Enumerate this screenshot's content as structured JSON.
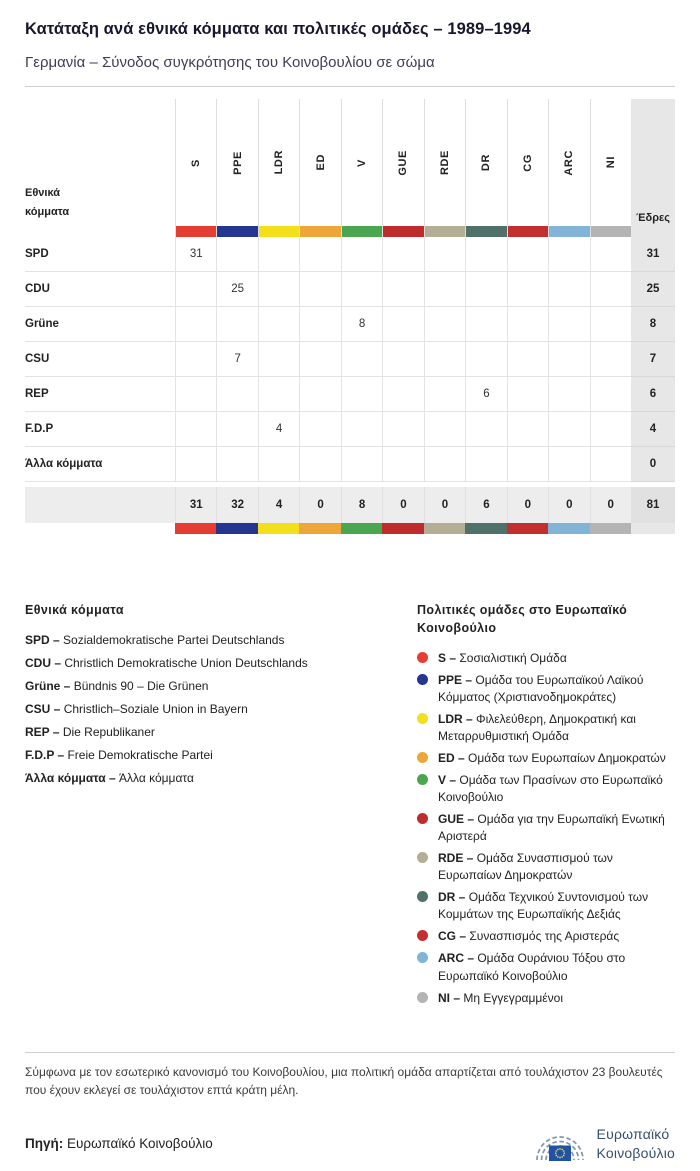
{
  "header": {
    "title": "Κατάταξη ανά εθνικά κόμματα και πολιτικές ομάδες – 1989–1994",
    "subtitle": "Γερμανία – Σύνοδος συγκρότησης του Κοινοβουλίου σε σώμα"
  },
  "table": {
    "row_header_label": "Εθνικά κόμματα",
    "seats_label": "Έδρες",
    "groups": [
      {
        "code": "S",
        "color": "#e63d33"
      },
      {
        "code": "PPE",
        "color": "#24368f"
      },
      {
        "code": "LDR",
        "color": "#f3df1a"
      },
      {
        "code": "ED",
        "color": "#eea63a"
      },
      {
        "code": "V",
        "color": "#4ba650"
      },
      {
        "code": "GUE",
        "color": "#bf2c2c"
      },
      {
        "code": "RDE",
        "color": "#b5ae97"
      },
      {
        "code": "DR",
        "color": "#50706a"
      },
      {
        "code": "CG",
        "color": "#c32f2f"
      },
      {
        "code": "ARC",
        "color": "#82b4d8"
      },
      {
        "code": "NI",
        "color": "#b4b4b4"
      }
    ],
    "rows": [
      {
        "party": "SPD",
        "values": [
          "31",
          "",
          "",
          "",
          "",
          "",
          "",
          "",
          "",
          "",
          ""
        ],
        "seats": "31"
      },
      {
        "party": "CDU",
        "values": [
          "",
          "25",
          "",
          "",
          "",
          "",
          "",
          "",
          "",
          "",
          ""
        ],
        "seats": "25"
      },
      {
        "party": "Grüne",
        "values": [
          "",
          "",
          "",
          "",
          "8",
          "",
          "",
          "",
          "",
          "",
          ""
        ],
        "seats": "8"
      },
      {
        "party": "CSU",
        "values": [
          "",
          "7",
          "",
          "",
          "",
          "",
          "",
          "",
          "",
          "",
          ""
        ],
        "seats": "7"
      },
      {
        "party": "REP",
        "values": [
          "",
          "",
          "",
          "",
          "",
          "",
          "",
          "6",
          "",
          "",
          ""
        ],
        "seats": "6"
      },
      {
        "party": "F.D.P",
        "values": [
          "",
          "",
          "4",
          "",
          "",
          "",
          "",
          "",
          "",
          "",
          ""
        ],
        "seats": "4"
      },
      {
        "party": "Άλλα κόμματα",
        "values": [
          "",
          "",
          "",
          "",
          "",
          "",
          "",
          "",
          "",
          "",
          ""
        ],
        "seats": "0"
      }
    ],
    "totals": {
      "values": [
        "31",
        "32",
        "4",
        "0",
        "8",
        "0",
        "0",
        "6",
        "0",
        "0",
        "0"
      ],
      "seats": "81"
    }
  },
  "legend_parties": {
    "title": "Εθνικά κόμματα",
    "items": [
      {
        "code": "SPD –",
        "name": "Sozialdemokratische Partei Deutschlands"
      },
      {
        "code": "CDU –",
        "name": "Christlich Demokratische Union Deutschlands"
      },
      {
        "code": "Grüne –",
        "name": "Bündnis 90 – Die Grünen"
      },
      {
        "code": "CSU –",
        "name": "Christlich–Soziale Union in Bayern"
      },
      {
        "code": "REP –",
        "name": "Die Republikaner"
      },
      {
        "code": "F.D.P –",
        "name": "Freie Demokratische Partei"
      },
      {
        "code": "Άλλα κόμματα –",
        "name": "Άλλα κόμματα"
      }
    ]
  },
  "legend_groups": {
    "title": "Πολιτικές ομάδες στο Ευρωπαϊκό Κοινοβούλιο",
    "items": [
      {
        "code": "S –",
        "name": "Σοσιαλιστική Ομάδα",
        "color": "#e63d33"
      },
      {
        "code": "PPE –",
        "name": "Ομάδα του Ευρωπαϊκού Λαϊκού Κόμματος (Χριστιανοδημοκράτες)",
        "color": "#24368f"
      },
      {
        "code": "LDR –",
        "name": "Φιλελεύθερη, Δημοκρατική και Μεταρρυθμιστική Ομάδα",
        "color": "#f3df1a"
      },
      {
        "code": "ED –",
        "name": "Ομάδα των Ευρωπαίων Δημοκρατών",
        "color": "#eea63a"
      },
      {
        "code": "V –",
        "name": "Ομάδα των Πρασίνων στο Ευρωπαϊκό Κοινοβούλιο",
        "color": "#4ba650"
      },
      {
        "code": "GUE –",
        "name": "Ομάδα για την Ευρωπαϊκή Ενωτική Αριστερά",
        "color": "#bf2c2c"
      },
      {
        "code": "RDE –",
        "name": "Ομάδα Συνασπισμού των Ευρωπαίων Δημοκρατών",
        "color": "#b5ae97"
      },
      {
        "code": "DR –",
        "name": "Ομάδα Τεχνικού Συντονισμού των Κομμάτων της Ευρωπαϊκής Δεξιάς",
        "color": "#50706a"
      },
      {
        "code": "CG –",
        "name": "Συνασπισμός της Αριστεράς",
        "color": "#c32f2f"
      },
      {
        "code": "ARC –",
        "name": "Ομάδα Ουράνιου Τόξου στο Ευρωπαϊκό Κοινοβούλιο",
        "color": "#82b4d8"
      },
      {
        "code": "NI –",
        "name": "Μη Εγγεγραμμένοι",
        "color": "#b4b4b4"
      }
    ]
  },
  "footer": {
    "note": "Σύμφωνα με τον εσωτερικό κανονισμό του Κοινοβουλίου, μια πολιτική ομάδα απαρτίζεται από τουλάχιστον 23 βουλευτές που έχουν εκλεγεί σε τουλάχιστον επτά κράτη μέλη.",
    "source_label": "Πηγή:",
    "source_value": "Ευρωπαϊκό Κοινοβούλιο",
    "logo_line1": "Ευρωπαϊκό",
    "logo_line2": "Κοινοβούλιο"
  },
  "chart_data": {
    "type": "table",
    "title": "Κατάταξη ανά εθνικά κόμματα και πολιτικές ομάδες – 1989–1994",
    "subtitle": "Γερμανία – Σύνοδος συγκρότησης του Κοινοβουλίου σε σώμα",
    "columns": [
      "Εθνικά κόμματα",
      "S",
      "PPE",
      "LDR",
      "ED",
      "V",
      "GUE",
      "RDE",
      "DR",
      "CG",
      "ARC",
      "NI",
      "Έδρες"
    ],
    "rows": [
      [
        "SPD",
        31,
        null,
        null,
        null,
        null,
        null,
        null,
        null,
        null,
        null,
        null,
        31
      ],
      [
        "CDU",
        null,
        25,
        null,
        null,
        null,
        null,
        null,
        null,
        null,
        null,
        null,
        25
      ],
      [
        "Grüne",
        null,
        null,
        null,
        null,
        8,
        null,
        null,
        null,
        null,
        null,
        null,
        8
      ],
      [
        "CSU",
        null,
        7,
        null,
        null,
        null,
        null,
        null,
        null,
        null,
        null,
        null,
        7
      ],
      [
        "REP",
        null,
        null,
        null,
        null,
        null,
        null,
        null,
        6,
        null,
        null,
        null,
        6
      ],
      [
        "F.D.P",
        null,
        null,
        4,
        null,
        null,
        null,
        null,
        null,
        null,
        null,
        null,
        4
      ],
      [
        "Άλλα κόμματα",
        null,
        null,
        null,
        null,
        null,
        null,
        null,
        null,
        null,
        null,
        null,
        0
      ],
      [
        "",
        31,
        32,
        4,
        0,
        8,
        0,
        0,
        6,
        0,
        0,
        0,
        81
      ]
    ]
  }
}
